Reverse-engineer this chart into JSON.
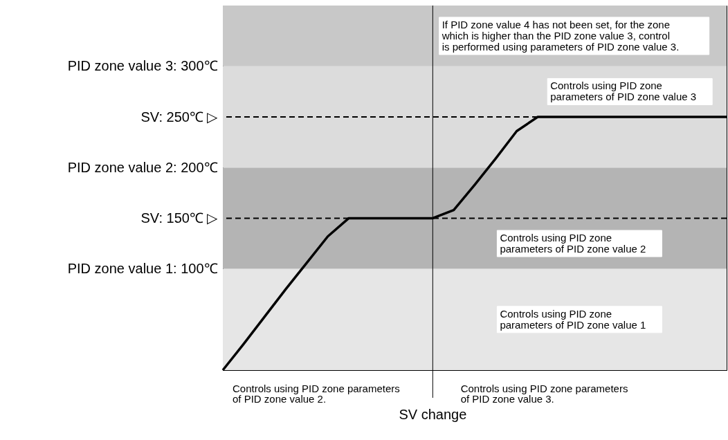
{
  "chart_data": {
    "type": "line",
    "tick_labels": "y",
    "line_style": "solid",
    "categories": [
      null,
      null,
      null,
      null,
      null,
      null,
      null,
      null,
      null,
      null,
      null,
      null,
      null,
      null,
      null,
      null,
      null,
      null,
      null,
      null,
      null,
      null,
      null,
      null,
      null
    ],
    "series": [
      {
        "color": "#000000",
        "values": [
          0,
          26,
          53,
          80,
          106,
          132,
          150,
          150,
          150,
          150,
          150,
          158,
          183,
          209,
          236,
          250,
          250,
          250,
          250,
          250,
          250,
          250,
          250,
          250,
          250
        ]
      }
    ],
    "ylim": [
      0,
      360
    ],
    "yticks": [
      {
        "value": 100,
        "label": "PID zone value 1: 100℃"
      },
      {
        "value": 150,
        "label": "SV: 150℃ ▷"
      },
      {
        "value": 200,
        "label": "PID zone value 2: 200℃"
      },
      {
        "value": 250,
        "label": "SV: 250℃ ▷"
      },
      {
        "value": 300,
        "label": "PID zone value 3: 300℃"
      }
    ],
    "bands": [
      {
        "axis": "y",
        "from": 0,
        "to": 100,
        "color": "#e6e6e6",
        "label": "Controls using PID zone parameters of PID zone value 1"
      },
      {
        "axis": "y",
        "from": 100,
        "to": 200,
        "color": "#b4b4b4",
        "label": "Controls using PID zone parameters of PID zone value 2"
      },
      {
        "axis": "y",
        "from": 200,
        "to": 300,
        "color": "#dcdcdc",
        "label": "Controls using PID zone parameters of PID zone value 3"
      },
      {
        "axis": "y",
        "from": 300,
        "to": 360,
        "color": "#c8c8c8",
        "label": "If PID zone value 4 has not been set, for the zone which is higher than the PID zone value 3, control is performed using parameters of PID zone value 3."
      }
    ],
    "ref_lines": [
      {
        "axis": "y",
        "value": 150,
        "line_style": "dashed"
      },
      {
        "axis": "y",
        "value": 250,
        "line_style": "dashed"
      }
    ],
    "annotations": [
      "Controls using PID zone parameters of PID zone value 2.",
      "Controls using PID zone parameters of PID zone value 3.",
      "SV change"
    ]
  }
}
